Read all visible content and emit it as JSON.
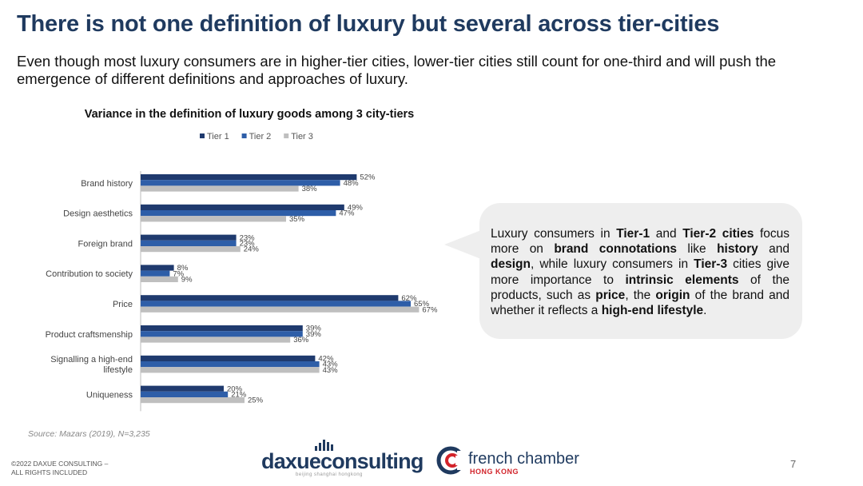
{
  "slide": {
    "title": "There is not one definition of luxury but several across tier-cities",
    "subtitle": "Even though most luxury consumers are in higher-tier cities, lower-tier cities still count for one-third and will push the emergence of different definitions and approaches of luxury.",
    "source": "Source: Mazars (2019), N=3,235",
    "copyright_line1": "©2022 DAXUE CONSULTING –",
    "copyright_line2": "ALL RIGHTS INCLUDED",
    "page_number": "7"
  },
  "callout": {
    "segments": [
      {
        "text": "Luxury consumers in ",
        "bold": false
      },
      {
        "text": "Tier-1",
        "bold": true
      },
      {
        "text": " and ",
        "bold": false
      },
      {
        "text": "Tier-2 cities",
        "bold": true
      },
      {
        "text": " focus more on ",
        "bold": false
      },
      {
        "text": "brand connotations",
        "bold": true
      },
      {
        "text": " like ",
        "bold": false
      },
      {
        "text": "history",
        "bold": true
      },
      {
        "text": " and ",
        "bold": false
      },
      {
        "text": "design",
        "bold": true
      },
      {
        "text": ", while luxury consumers in ",
        "bold": false
      },
      {
        "text": "Tier-3",
        "bold": true
      },
      {
        "text": " cities give more importance to ",
        "bold": false
      },
      {
        "text": "intrinsic elements",
        "bold": true
      },
      {
        "text": " of the products, such as ",
        "bold": false
      },
      {
        "text": "price",
        "bold": true
      },
      {
        "text": ", the ",
        "bold": false
      },
      {
        "text": "origin",
        "bold": true
      },
      {
        "text": " of the brand and whether it reflects a ",
        "bold": false
      },
      {
        "text": "high-end lifestyle",
        "bold": true
      },
      {
        "text": ".",
        "bold": false
      }
    ]
  },
  "logos": {
    "daxue_name": "daxueconsulting",
    "daxue_tagline": "beijing shanghai hongkong",
    "fc_name": "french chamber",
    "fc_sub": "HONG KONG"
  },
  "chart_data": {
    "type": "bar",
    "orientation": "horizontal",
    "title": "Variance in the definition of luxury goods among 3 city-tiers",
    "categories": [
      "Brand history",
      "Design aesthetics",
      "Foreign brand",
      "Contribution to society",
      "Price",
      "Product craftsmenship",
      "Signalling a high-end lifestyle",
      "Uniqueness"
    ],
    "series": [
      {
        "name": "Tier 1",
        "color": "#1f3a6e",
        "values": [
          52,
          49,
          23,
          8,
          62,
          39,
          42,
          20
        ]
      },
      {
        "name": "Tier 2",
        "color": "#2e5ea8",
        "values": [
          48,
          47,
          23,
          7,
          65,
          39,
          43,
          21
        ]
      },
      {
        "name": "Tier 3",
        "color": "#bfbfbf",
        "values": [
          38,
          35,
          24,
          9,
          67,
          36,
          43,
          25
        ]
      }
    ],
    "value_suffix": "%",
    "xlim": [
      0,
      100
    ],
    "legend_position": "top",
    "grid": false
  }
}
